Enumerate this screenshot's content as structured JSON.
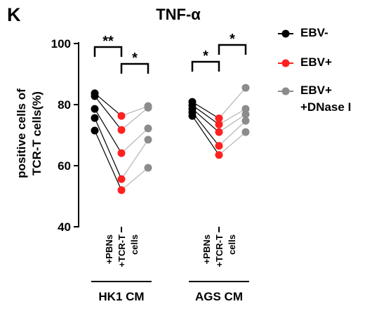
{
  "chart_data": {
    "type": "paired-dot",
    "panel_label": "K",
    "title": "TNF-α",
    "y_label": [
      "positive cells of",
      "TCR-T cells(%)"
    ],
    "categories": [
      "HK1 CM",
      "AGS CM"
    ],
    "x_labels": [
      "+PBNs",
      "+TCR-T",
      "cells"
    ],
    "series": [
      {
        "name": "EBV-",
        "color": "#000000",
        "values": [
          [
            83.7,
            82.8,
            78.6,
            75.6,
            71.5
          ],
          [
            80.9,
            79.8,
            78.6,
            77.5,
            76.3
          ]
        ]
      },
      {
        "name": "EBV+",
        "color": "#ff2020",
        "values": [
          [
            76.3,
            71.7,
            64.1,
            55.6,
            52.0
          ],
          [
            75.5,
            73.5,
            71.0,
            66.5,
            63.5
          ]
        ]
      },
      {
        "name": "EBV+\n+DNase I",
        "color": "#8c8c8c",
        "values": [
          [
            79.5,
            79.0,
            72.2,
            68.5,
            59.3
          ],
          [
            85.5,
            78.6,
            76.8,
            74.7,
            71.0
          ]
        ]
      }
    ],
    "significance": [
      [
        "**",
        "*"
      ],
      [
        "*",
        "*"
      ]
    ],
    "ylim": [
      40,
      100
    ],
    "yticks": [
      40,
      60,
      80,
      100
    ]
  }
}
